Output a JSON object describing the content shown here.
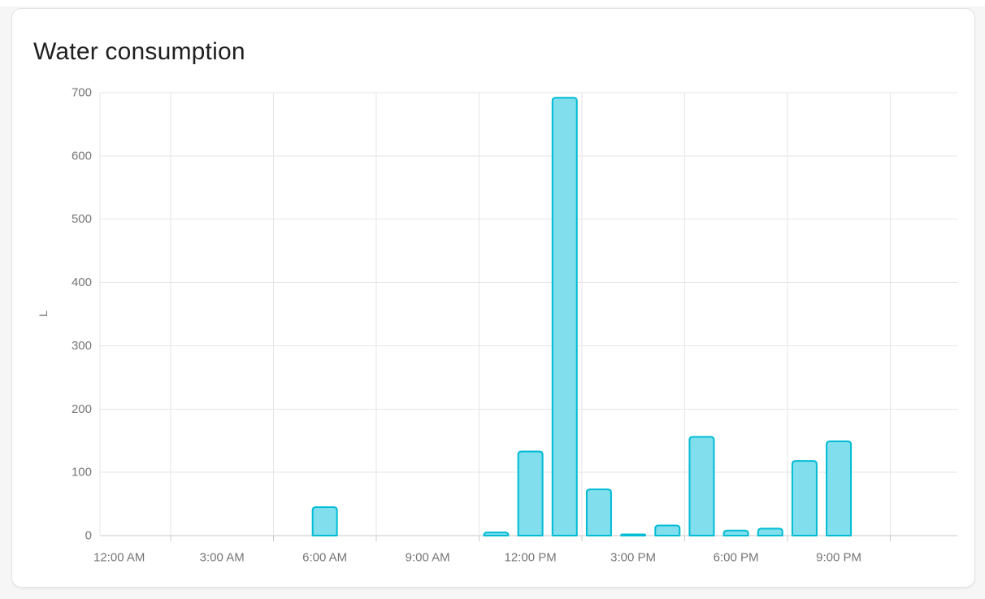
{
  "card": {
    "title": "Water consumption"
  },
  "chart_data": {
    "type": "bar",
    "title": "Water consumption",
    "xlabel": "",
    "ylabel": "L",
    "ylim": [
      0,
      700
    ],
    "y_ticks": [
      0,
      100,
      200,
      300,
      400,
      500,
      600,
      700
    ],
    "x_axis_labels": [
      "12:00 AM",
      "3:00 AM",
      "6:00 AM",
      "9:00 AM",
      "12:00 PM",
      "3:00 PM",
      "6:00 PM",
      "9:00 PM"
    ],
    "grid": true,
    "legend": false,
    "categories": [
      "12:00 AM",
      "1:00 AM",
      "2:00 AM",
      "3:00 AM",
      "4:00 AM",
      "5:00 AM",
      "6:00 AM",
      "7:00 AM",
      "8:00 AM",
      "9:00 AM",
      "10:00 AM",
      "11:00 AM",
      "12:00 PM",
      "1:00 PM",
      "2:00 PM",
      "3:00 PM",
      "4:00 PM",
      "5:00 PM",
      "6:00 PM",
      "7:00 PM",
      "8:00 PM",
      "9:00 PM",
      "10:00 PM",
      "11:00 PM"
    ],
    "values": [
      0,
      0,
      0,
      0,
      0,
      0,
      45,
      0,
      0,
      0,
      0,
      5,
      133,
      692,
      73,
      2,
      16,
      156,
      8,
      11,
      118,
      149,
      0,
      0
    ],
    "colors": {
      "bar_fill": "#81DEEC",
      "bar_stroke": "#00BCD4",
      "gridline": "#e6e6e6",
      "axis_line": "#c9c9c9",
      "tick_text": "#757575",
      "title_text": "#1f1f1f"
    }
  }
}
